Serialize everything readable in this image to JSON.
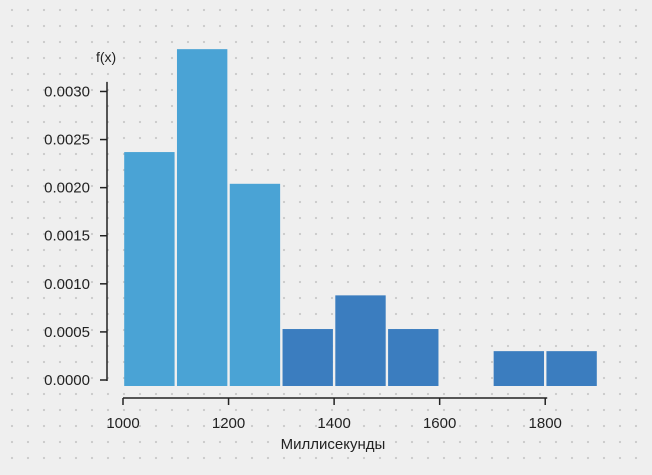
{
  "chart_data": {
    "type": "bar",
    "title": "",
    "ylabel": "f(x)",
    "xlabel": "Миллисекунды",
    "bin_edges": [
      1000,
      1100,
      1200,
      1300,
      1400,
      1500,
      1600,
      1700,
      1800,
      1900
    ],
    "values": [
      0.00237,
      0.00344,
      0.00204,
      0.00053,
      0.00088,
      0.00053,
      0.0,
      0.0003,
      0.0003
    ],
    "xlim": [
      1000,
      1900
    ],
    "ylim": [
      0.0,
      0.0034
    ],
    "xticks": [
      "1000",
      "1200",
      "1400",
      "1600",
      "1800"
    ],
    "yticks": [
      "0.0000",
      "0.0005",
      "0.0010",
      "0.0015",
      "0.0020",
      "0.0025",
      "0.0030"
    ],
    "grid": "dotted",
    "colors": {
      "background": "#efefef",
      "dot": "#c9c9c9",
      "bar_light": "#4aa3d5",
      "bar_dark": "#3b7dbf",
      "bar_edge": "#ffffff",
      "axis": "#222222"
    }
  }
}
